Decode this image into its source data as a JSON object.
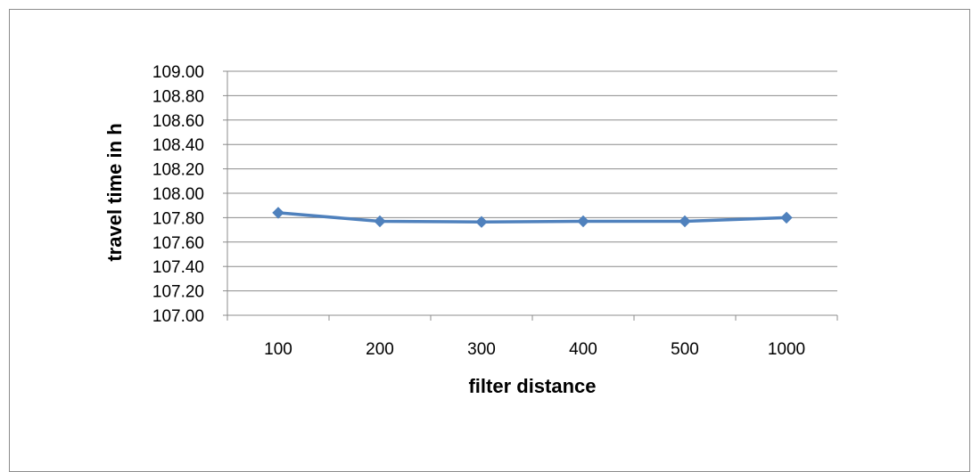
{
  "chart_data": {
    "type": "line",
    "title": "",
    "xlabel": "filter distance",
    "ylabel": "travel time in h",
    "categories": [
      "100",
      "200",
      "300",
      "400",
      "500",
      "1000"
    ],
    "series": [
      {
        "values": [
          107.84,
          107.77,
          107.765,
          107.77,
          107.77,
          107.8
        ]
      }
    ],
    "ylim": [
      107.0,
      109.0
    ],
    "ytick_step": 0.2,
    "ytick_labels": [
      "107.00",
      "107.20",
      "107.40",
      "107.60",
      "107.80",
      "108.00",
      "108.20",
      "108.40",
      "108.60",
      "108.80",
      "109.00"
    ],
    "grid": "horizontal",
    "legend": "none",
    "marker": "diamond",
    "colors": {
      "line": "#4f81bd",
      "grid": "#8c8c8c",
      "axis": "#8c8c8c"
    }
  }
}
